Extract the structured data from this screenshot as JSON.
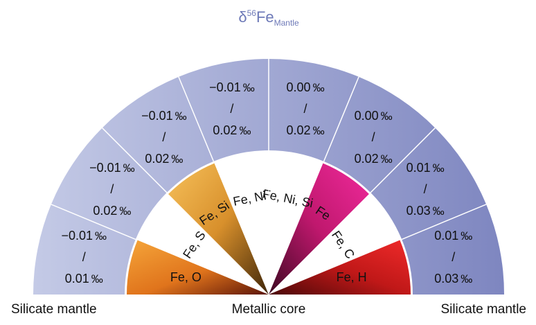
{
  "title": {
    "main": "δ",
    "sup": "56",
    "base": "Fe",
    "sub": "Mantle"
  },
  "colors": {
    "title": "#6e7ab8",
    "outer_left": "#c4cae6",
    "outer_right": "#7e86c0",
    "divider": "#ffffff",
    "text": "#111111"
  },
  "outer_segments": [
    {
      "top": "−0.01",
      "bottom": "0.01",
      "unit": "‰"
    },
    {
      "top": "−0.01",
      "bottom": "0.02",
      "unit": "‰"
    },
    {
      "top": "−0.01",
      "bottom": "0.02",
      "unit": "‰"
    },
    {
      "top": "−0.01",
      "bottom": "0.02",
      "unit": "‰"
    },
    {
      "top": "0.00",
      "bottom": "0.02",
      "unit": "‰"
    },
    {
      "top": "0.00",
      "bottom": "0.02",
      "unit": "‰"
    },
    {
      "top": "0.01",
      "bottom": "0.03",
      "unit": "‰"
    },
    {
      "top": "0.01",
      "bottom": "0.03",
      "unit": "‰"
    }
  ],
  "core_sectors": [
    {
      "label": "Fe, O",
      "fill": "orange-brown"
    },
    {
      "label": "Fe, S",
      "fill": "white"
    },
    {
      "label": "Fe, Si",
      "fill": "yellow-brown"
    },
    {
      "label": "Fe, Ni",
      "fill": "white"
    },
    {
      "label": "Fe, Ni, Si",
      "fill": "white"
    },
    {
      "label": "Fe",
      "fill": "magenta"
    },
    {
      "label": "Fe, C",
      "fill": "white"
    },
    {
      "label": "Fe, H",
      "fill": "red"
    }
  ],
  "bottom_labels": {
    "left": "Silicate mantle",
    "center": "Metallic core",
    "right": "Silicate mantle"
  }
}
